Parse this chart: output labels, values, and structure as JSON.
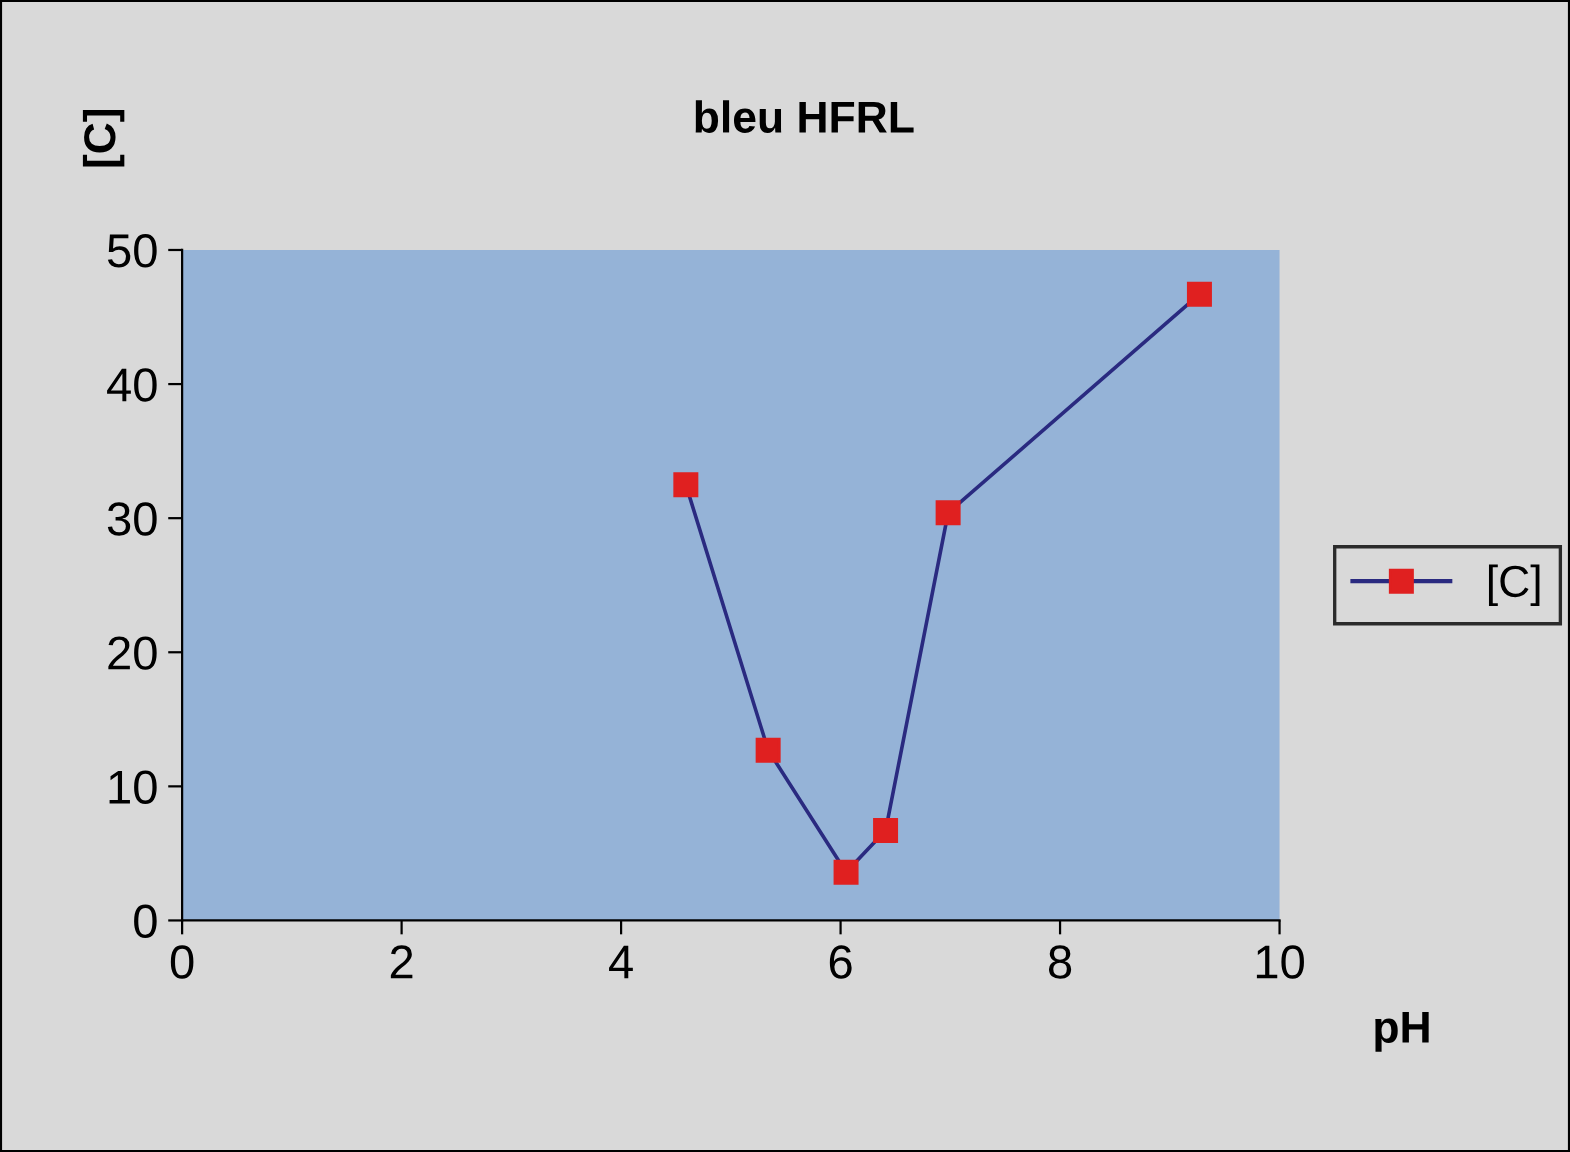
{
  "chart_data": {
    "type": "line",
    "title": "bleu HFRL",
    "xlabel": "pH",
    "ylabel": "[C]",
    "series": [
      {
        "name": "[C]",
        "color": "#e02020",
        "x": [
          4.59,
          5.34,
          6.05,
          6.41,
          6.98,
          9.27
        ],
        "values": [
          32.5,
          12.7,
          3.6,
          6.7,
          30.4,
          46.7
        ]
      }
    ],
    "xlim": [
      0,
      10
    ],
    "ylim": [
      0,
      50
    ],
    "xticks": [
      0,
      2,
      4,
      6,
      8,
      10
    ],
    "yticks": [
      0,
      10,
      20,
      30,
      40,
      50
    ],
    "grid": false,
    "legend": "right",
    "marker": "square",
    "line_style": "solid"
  }
}
